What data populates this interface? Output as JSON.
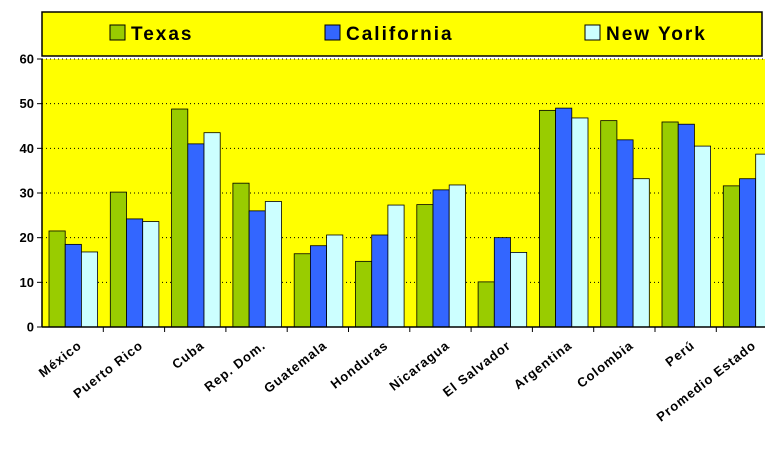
{
  "chart_data": {
    "type": "bar",
    "categories": [
      "México",
      "Puerto Rico",
      "Cuba",
      "Rep. Dom.",
      "Guatemala",
      "Honduras",
      "Nicaragua",
      "El Salvador",
      "Argentina",
      "Colombia",
      "Perú",
      "Promedio Estado"
    ],
    "series": [
      {
        "name": "Texas",
        "color": "#99cc00",
        "values": [
          21.5,
          30.2,
          48.8,
          32.2,
          16.4,
          14.7,
          27.4,
          10.1,
          48.5,
          46.2,
          45.9,
          31.6
        ]
      },
      {
        "name": "California",
        "color": "#3366ff",
        "values": [
          18.5,
          24.2,
          41.0,
          26.0,
          18.2,
          20.6,
          30.7,
          20.0,
          49.0,
          41.9,
          45.4,
          33.2
        ]
      },
      {
        "name": "New York",
        "color": "#ccffff",
        "values": [
          16.8,
          23.6,
          43.5,
          28.1,
          20.6,
          27.3,
          31.8,
          16.7,
          46.8,
          33.2,
          40.5,
          38.7
        ]
      }
    ],
    "ylim": [
      0,
      60
    ],
    "yticks": [
      "0",
      "10",
      "20",
      "30",
      "40",
      "50",
      "60"
    ],
    "title": "",
    "xlabel": "",
    "ylabel": "",
    "grid": "horizontal dotted",
    "legend_position": "top",
    "plot_background": "#ffff00"
  }
}
